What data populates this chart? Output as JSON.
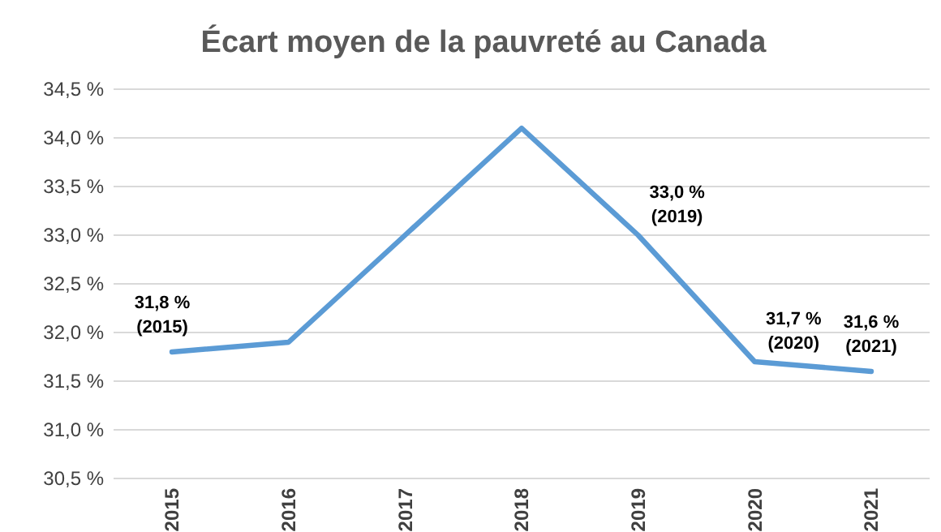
{
  "chart_data": {
    "type": "line",
    "title": "Écart moyen de la pauvreté au Canada",
    "categories": [
      "2015",
      "2016",
      "2017",
      "2018",
      "2019",
      "2020",
      "2021"
    ],
    "series": [
      {
        "color": "#5b9bd5",
        "values": [
          31.8,
          31.9,
          33.0,
          34.1,
          33.0,
          31.7,
          31.6
        ]
      }
    ],
    "ylim": [
      30.5,
      34.5
    ],
    "yticks": [
      {
        "value": 30.5,
        "label": "30,5 %"
      },
      {
        "value": 31,
        "label": "31,0 %"
      },
      {
        "value": 31.5,
        "label": "31,5 %"
      },
      {
        "value": 32,
        "label": "32,0 %"
      },
      {
        "value": 32.5,
        "label": "32,5 %"
      },
      {
        "value": 33,
        "label": "33,0 %"
      },
      {
        "value": 33.5,
        "label": "33,5 %"
      },
      {
        "value": 34,
        "label": "34,0 %"
      },
      {
        "value": 34.5,
        "label": "34,5 %"
      }
    ],
    "grid": "y",
    "marker": "none",
    "line_style": "solid",
    "annotations": [
      {
        "text": "31,8 %\n(2015)",
        "x": "2015",
        "y": 31.8
      },
      {
        "text": "33,0 %\n(2019)",
        "x": "2019",
        "y": 33.0
      },
      {
        "text": "31,7 %\n(2020)",
        "x": "2020",
        "y": 31.7
      },
      {
        "text": "31,6 %\n(2021)",
        "x": "2021",
        "y": 31.6
      }
    ]
  }
}
